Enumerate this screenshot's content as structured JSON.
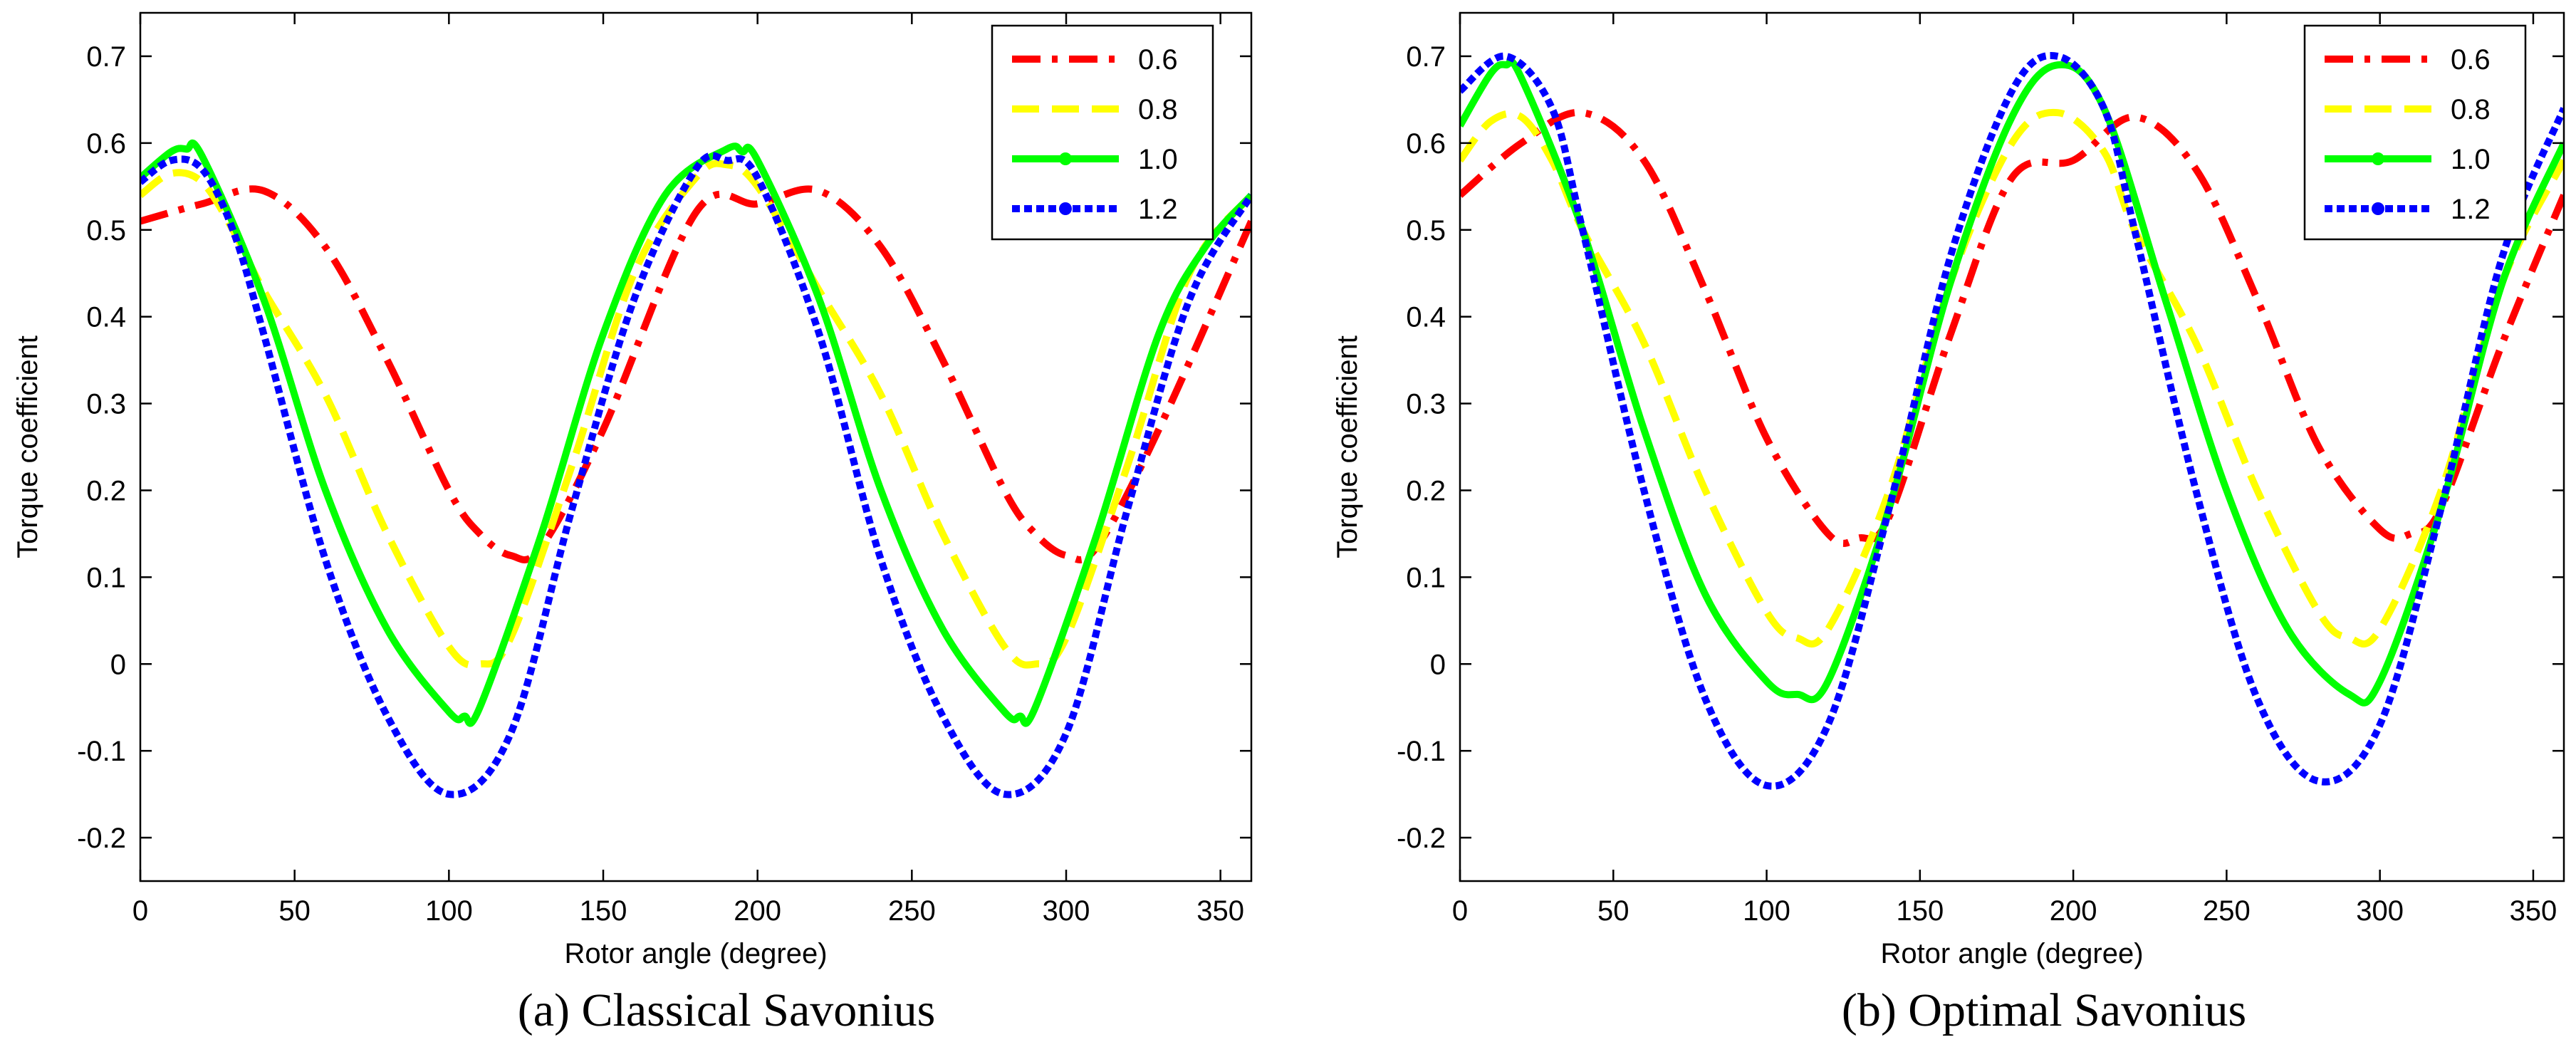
{
  "figure": {
    "captions": [
      "(a) Classical Savonius",
      "(b) Optimal Savonius"
    ]
  },
  "chart_data": [
    {
      "type": "line",
      "title": "(a) Classical Savonius",
      "xlabel": "Rotor angle (degree)",
      "ylabel": "Torque coefficient",
      "xlim": [
        0,
        360
      ],
      "ylim": [
        -0.25,
        0.75
      ],
      "xticks": [
        0,
        50,
        100,
        150,
        200,
        250,
        300,
        350
      ],
      "yticks": [
        -0.2,
        -0.1,
        0,
        0.1,
        0.2,
        0.3,
        0.4,
        0.5,
        0.6,
        0.7
      ],
      "legend_position": "top-right",
      "grid": false,
      "series": [
        {
          "name": "0.6",
          "style": "dash-dot",
          "color": "#ff0000",
          "marker": "none",
          "x": [
            0,
            20,
            40,
            60,
            80,
            100,
            110,
            120,
            130,
            150,
            180,
            200,
            220,
            240,
            260,
            280,
            290,
            300,
            310,
            330,
            360
          ],
          "y": [
            0.51,
            0.53,
            0.545,
            0.48,
            0.35,
            0.2,
            0.15,
            0.125,
            0.135,
            0.27,
            0.52,
            0.53,
            0.545,
            0.48,
            0.35,
            0.2,
            0.15,
            0.125,
            0.135,
            0.27,
            0.51
          ]
        },
        {
          "name": "0.8",
          "style": "dashed",
          "color": "#ffff00",
          "marker": "none",
          "x": [
            0,
            10,
            20,
            30,
            40,
            60,
            80,
            100,
            110,
            120,
            140,
            160,
            180,
            190,
            200,
            220,
            240,
            260,
            280,
            290,
            300,
            320,
            340,
            360
          ],
          "y": [
            0.54,
            0.565,
            0.555,
            0.5,
            0.43,
            0.31,
            0.15,
            0.02,
            0.0,
            0.03,
            0.23,
            0.45,
            0.56,
            0.575,
            0.55,
            0.43,
            0.31,
            0.15,
            0.02,
            0.0,
            0.03,
            0.23,
            0.45,
            0.54
          ]
        },
        {
          "name": "1.0",
          "style": "solid",
          "color": "#00ff00",
          "marker": "circle",
          "x": [
            0,
            10,
            15,
            20,
            40,
            60,
            80,
            100,
            105,
            110,
            130,
            150,
            170,
            190,
            195,
            200,
            220,
            240,
            260,
            280,
            285,
            290,
            310,
            330,
            345,
            360
          ],
          "y": [
            0.56,
            0.59,
            0.593,
            0.585,
            0.42,
            0.2,
            0.04,
            -0.055,
            -0.06,
            -0.05,
            0.15,
            0.38,
            0.54,
            0.593,
            0.59,
            0.58,
            0.42,
            0.2,
            0.04,
            -0.055,
            -0.06,
            -0.05,
            0.15,
            0.38,
            0.48,
            0.54
          ]
        },
        {
          "name": "1.2",
          "style": "dotted",
          "color": "#0000ff",
          "marker": "circle",
          "x": [
            0,
            10,
            20,
            30,
            40,
            60,
            80,
            100,
            120,
            140,
            160,
            180,
            190,
            200,
            220,
            240,
            260,
            280,
            300,
            320,
            340,
            360
          ],
          "y": [
            0.555,
            0.58,
            0.57,
            0.5,
            0.38,
            0.12,
            -0.06,
            -0.15,
            -0.08,
            0.18,
            0.42,
            0.57,
            0.58,
            0.56,
            0.38,
            0.12,
            -0.06,
            -0.15,
            -0.08,
            0.18,
            0.42,
            0.54
          ]
        }
      ]
    },
    {
      "type": "line",
      "title": "(b) Optimal Savonius",
      "xlabel": "Rotor angle (degree)",
      "ylabel": "Torque coefficient",
      "xlim": [
        0,
        360
      ],
      "ylim": [
        -0.25,
        0.75
      ],
      "xticks": [
        0,
        50,
        100,
        150,
        200,
        250,
        300,
        350
      ],
      "yticks": [
        -0.2,
        -0.1,
        0,
        0.1,
        0.2,
        0.3,
        0.4,
        0.5,
        0.6,
        0.7
      ],
      "legend_position": "top-right",
      "grid": false,
      "series": [
        {
          "name": "0.6",
          "style": "dash-dot",
          "color": "#ff0000",
          "marker": "none",
          "x": [
            0,
            20,
            40,
            60,
            80,
            100,
            120,
            130,
            140,
            160,
            180,
            200,
            220,
            240,
            260,
            280,
            300,
            310,
            320,
            340,
            360
          ],
          "y": [
            0.54,
            0.6,
            0.635,
            0.58,
            0.43,
            0.26,
            0.15,
            0.145,
            0.17,
            0.38,
            0.56,
            0.58,
            0.63,
            0.57,
            0.42,
            0.25,
            0.155,
            0.15,
            0.18,
            0.37,
            0.54
          ]
        },
        {
          "name": "0.8",
          "style": "dashed",
          "color": "#ffff00",
          "marker": "none",
          "x": [
            0,
            10,
            20,
            30,
            40,
            60,
            80,
            100,
            110,
            120,
            140,
            160,
            180,
            195,
            210,
            220,
            240,
            260,
            280,
            290,
            300,
            320,
            340,
            360
          ],
          "y": [
            0.58,
            0.625,
            0.63,
            0.58,
            0.5,
            0.37,
            0.2,
            0.06,
            0.03,
            0.04,
            0.2,
            0.44,
            0.6,
            0.635,
            0.59,
            0.5,
            0.37,
            0.2,
            0.06,
            0.03,
            0.04,
            0.2,
            0.44,
            0.58
          ]
        },
        {
          "name": "1.0",
          "style": "solid",
          "color": "#00ff00",
          "marker": "circle",
          "x": [
            0,
            10,
            15,
            20,
            40,
            60,
            80,
            100,
            110,
            120,
            140,
            160,
            180,
            195,
            210,
            230,
            250,
            270,
            290,
            300,
            320,
            340,
            360
          ],
          "y": [
            0.62,
            0.68,
            0.69,
            0.675,
            0.5,
            0.27,
            0.08,
            -0.02,
            -0.035,
            -0.02,
            0.18,
            0.44,
            0.63,
            0.69,
            0.64,
            0.42,
            0.2,
            0.04,
            -0.035,
            -0.02,
            0.18,
            0.44,
            0.6
          ]
        },
        {
          "name": "1.2",
          "style": "dotted",
          "color": "#0000ff",
          "marker": "circle",
          "x": [
            0,
            15,
            30,
            40,
            60,
            80,
            100,
            120,
            140,
            160,
            180,
            195,
            210,
            220,
            240,
            260,
            280,
            300,
            320,
            340,
            360
          ],
          "y": [
            0.66,
            0.7,
            0.64,
            0.5,
            0.2,
            -0.04,
            -0.14,
            -0.07,
            0.18,
            0.47,
            0.66,
            0.7,
            0.64,
            0.5,
            0.2,
            -0.04,
            -0.135,
            -0.07,
            0.18,
            0.47,
            0.64
          ]
        }
      ]
    }
  ]
}
